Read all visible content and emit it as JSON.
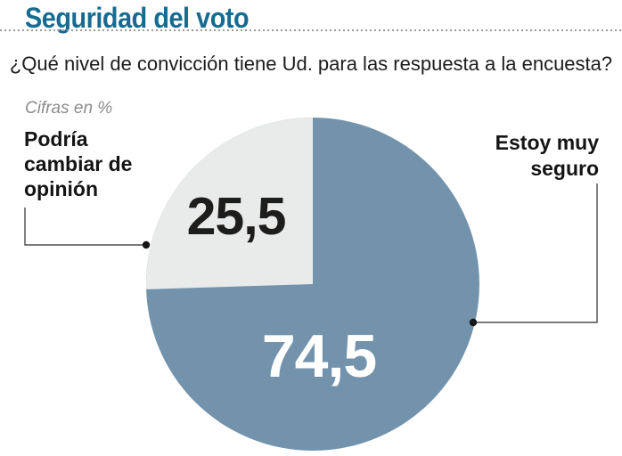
{
  "header": {
    "title": "Seguridad del voto",
    "title_color": "#176b91"
  },
  "chart_data": {
    "type": "pie",
    "title": "¿Qué nivel de convicción tiene Ud. para las respuesta a la encuesta?",
    "units_note": "Cifras en %",
    "legend_position": "callout labels with leader lines",
    "start_angle": "12 o'clock",
    "small_slice_sweep": "counterclockwise",
    "slices": [
      {
        "label": "Podría cambiar de opinión",
        "value": 25.5,
        "display": "25,5",
        "color": "#e9eaea",
        "value_color": "#1d1d1b"
      },
      {
        "label": "Estoy muy seguro",
        "value": 74.5,
        "display": "74,5",
        "color": "#7293ab",
        "value_color": "#ffffff"
      }
    ]
  }
}
